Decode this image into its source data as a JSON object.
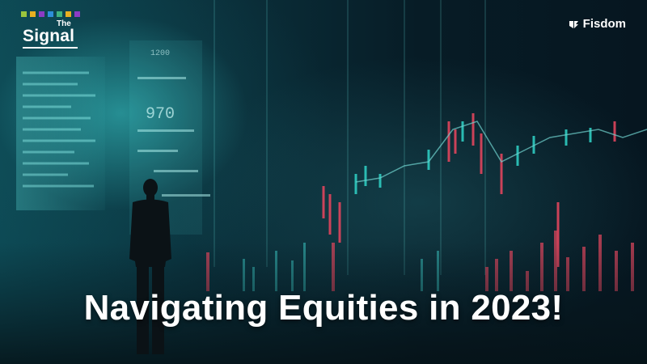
{
  "logo": {
    "the": "The",
    "signal": "Signal",
    "dot_colors": [
      "#9bc53d",
      "#e8b021",
      "#8c3bc4",
      "#2d8fd9",
      "#3fb37f",
      "#e8b021",
      "#8c3bc4"
    ]
  },
  "brand": {
    "name": "Fisdom",
    "mark_icon": "fisdom-logo-icon"
  },
  "headline": "Navigating Equities in 2023!",
  "overlay_numbers": [
    "970",
    "1200"
  ],
  "colors": {
    "background": "#0a2f3a",
    "glow": "#3cd2d2",
    "candle_up": "#2ecbc0",
    "candle_down": "#e0455d",
    "text": "#ffffff"
  }
}
